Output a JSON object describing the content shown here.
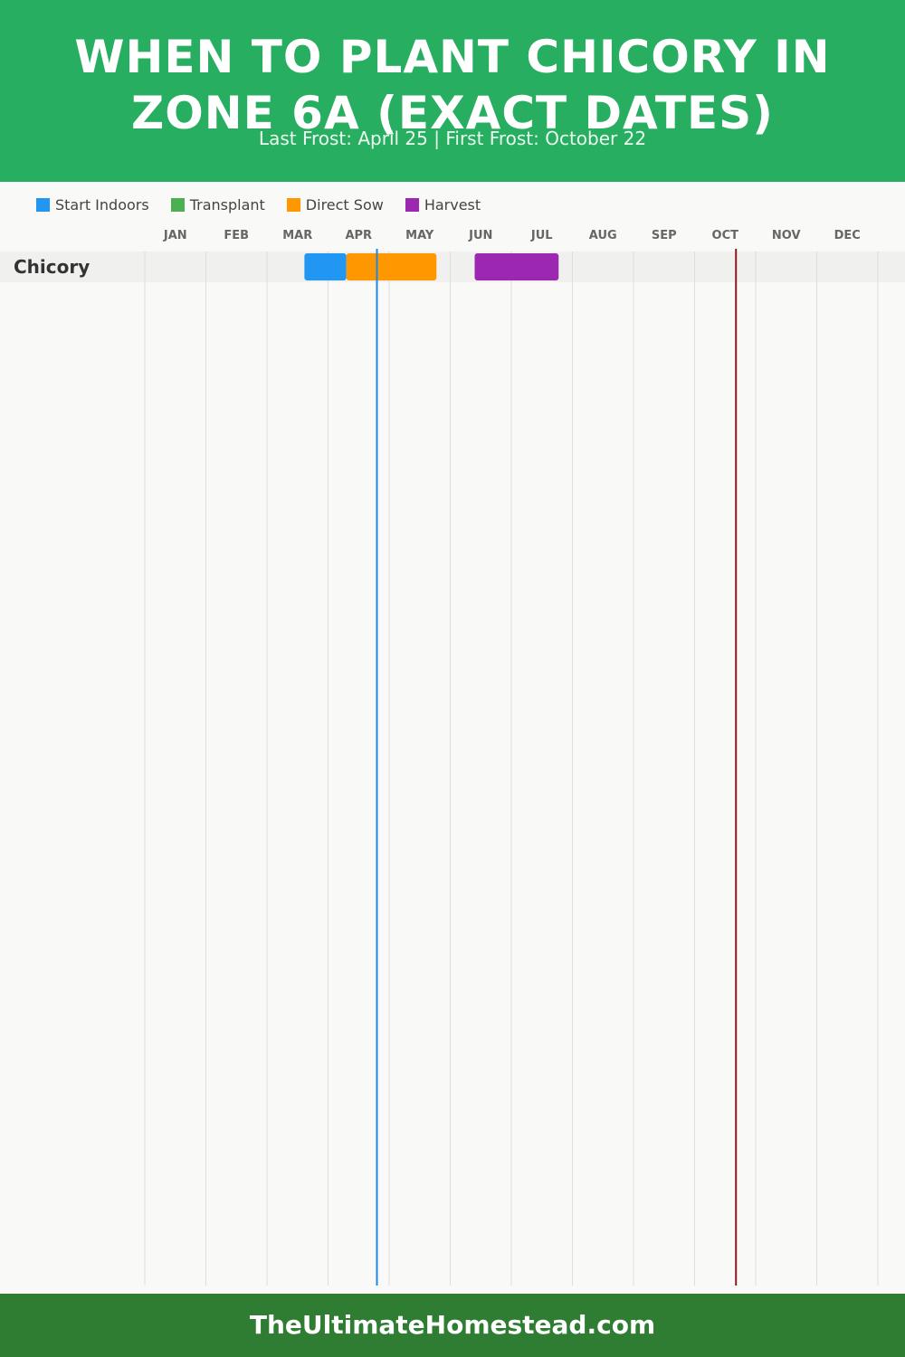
{
  "header": {
    "title": "WHEN TO PLANT CHICORY IN ZONE 6A (EXACT DATES)",
    "subtitle": "Last Frost: April 25 | First Frost: October 22"
  },
  "colors": {
    "header_bg": "#27ae60",
    "footer_bg": "#2e7d32",
    "start_indoors": "#2196f3",
    "transplant": "#4caf50",
    "direct_sow": "#ff9800",
    "harvest": "#9c27b0",
    "last_frost_line": "#1e88e5",
    "first_frost_line": "#8b1a1a"
  },
  "chart_data": {
    "type": "gantt",
    "months": [
      "JAN",
      "FEB",
      "MAR",
      "APR",
      "MAY",
      "JUN",
      "JUL",
      "AUG",
      "SEP",
      "OCT",
      "NOV",
      "DEC"
    ],
    "legend": [
      {
        "label": "Start Indoors",
        "color": "#2196f3"
      },
      {
        "label": "Transplant",
        "color": "#4caf50"
      },
      {
        "label": "Direct Sow",
        "color": "#ff9800"
      },
      {
        "label": "Harvest",
        "color": "#9c27b0"
      }
    ],
    "frost_dates": {
      "last_frost": {
        "month": 4,
        "day": 25,
        "color": "#1e88e5"
      },
      "first_frost": {
        "month": 10,
        "day": 22,
        "color": "#8b1a1a"
      }
    },
    "crops": [
      {
        "name": "Chicory",
        "tasks": [
          {
            "type": "Start Indoors",
            "color": "#2196f3",
            "start": {
              "month": 3,
              "day": 20
            },
            "end": {
              "month": 4,
              "day": 10
            }
          },
          {
            "type": "Direct Sow",
            "color": "#ff9800",
            "start": {
              "month": 4,
              "day": 10
            },
            "end": {
              "month": 5,
              "day": 25
            }
          },
          {
            "type": "Harvest",
            "color": "#9c27b0",
            "start": {
              "month": 6,
              "day": 13
            },
            "end": {
              "month": 7,
              "day": 25
            }
          }
        ]
      }
    ]
  },
  "footer": {
    "site": "TheUltimateHomestead.com"
  }
}
